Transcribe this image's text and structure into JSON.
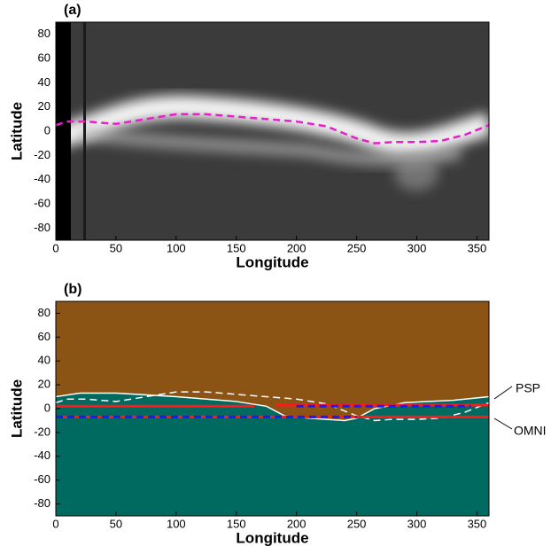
{
  "chart_data": [
    {
      "type": "line",
      "title": "(a)",
      "xlabel": "Longitude",
      "ylabel": "Latitude",
      "xlim": [
        0,
        360
      ],
      "ylim": [
        -90,
        90
      ],
      "xticks": [
        0,
        50,
        100,
        150,
        200,
        250,
        300,
        350
      ],
      "yticks": [
        -80,
        -60,
        -40,
        -20,
        0,
        20,
        40,
        60,
        80
      ],
      "series": [
        {
          "color": "#e620c8",
          "dashed": true,
          "width": 2.5,
          "x": [
            0,
            10,
            25,
            50,
            75,
            100,
            125,
            150,
            200,
            225,
            250,
            265,
            280,
            300,
            320,
            340,
            360
          ],
          "values": [
            5,
            8,
            8,
            6,
            10,
            14,
            14,
            12,
            8,
            4,
            -6,
            -10,
            -9,
            -9,
            -8,
            -3,
            5
          ]
        }
      ]
    },
    {
      "type": "line",
      "title": "(b)",
      "xlabel": "Longitude",
      "ylabel": "Latitude",
      "xlim": [
        0,
        360
      ],
      "ylim": [
        -90,
        90
      ],
      "background": "#8b5314",
      "xticks": [
        0,
        50,
        100,
        150,
        200,
        250,
        300,
        350
      ],
      "yticks": [
        -80,
        -60,
        -40,
        -20,
        0,
        20,
        40,
        60,
        80
      ],
      "annotations": [
        "PSP",
        "OMNI"
      ],
      "series": [
        {
          "color": "#ffffff",
          "width": 1.5,
          "fill_below": "#006a60",
          "x": [
            0,
            20,
            50,
            100,
            150,
            175,
            190,
            210,
            240,
            250,
            265,
            290,
            310,
            330,
            360
          ],
          "values": [
            10,
            13,
            13,
            10,
            6,
            2,
            -6,
            -8,
            -10,
            -8,
            0,
            5,
            6,
            7,
            10
          ]
        },
        {
          "color": "#ffffff",
          "dashed": true,
          "width": 1.5,
          "x": [
            0,
            10,
            25,
            50,
            75,
            100,
            125,
            150,
            200,
            225,
            250,
            265,
            280,
            300,
            320,
            340,
            360
          ],
          "values": [
            5,
            8,
            8,
            6,
            10,
            14,
            14,
            12,
            8,
            4,
            -6,
            -10,
            -9,
            -9,
            -8,
            -3,
            5
          ]
        },
        {
          "color": "#ff1a1a",
          "width": 3,
          "x": [
            0,
            165,
            174,
            183,
            360
          ],
          "values": [
            2,
            2,
            null,
            3,
            3
          ]
        },
        {
          "color": "#ff1a1a",
          "width": 3,
          "x": [
            0,
            360
          ],
          "values": [
            -7,
            -7
          ]
        },
        {
          "color": "#1a1aff",
          "dashed": true,
          "width": 3,
          "x": [
            0,
            250
          ],
          "values": [
            -7,
            -7
          ]
        },
        {
          "color": "#1a1aff",
          "dashed": true,
          "width": 3,
          "x": [
            200,
            345
          ],
          "values": [
            2,
            2
          ]
        }
      ]
    }
  ]
}
